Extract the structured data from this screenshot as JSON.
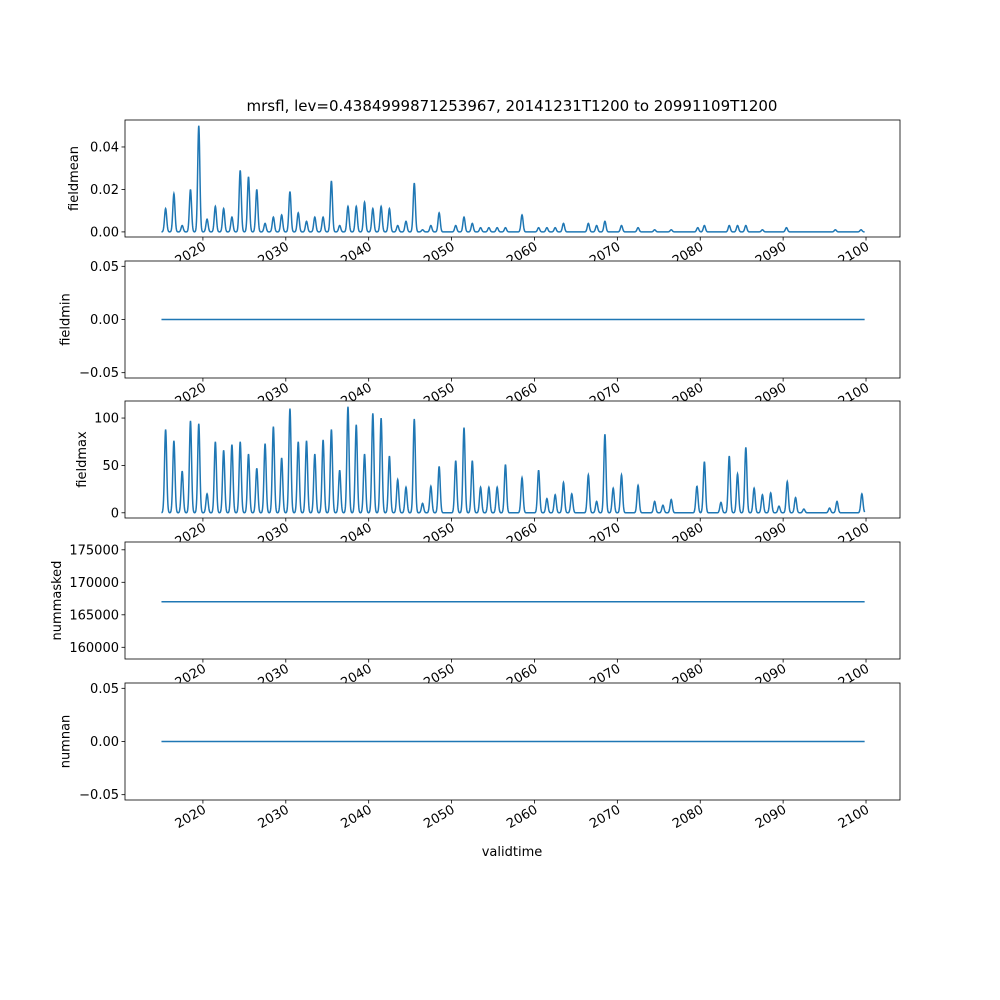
{
  "chart_data": {
    "type": "line",
    "title": "mrsfl, lev=0.4384999871253967, 20141231T1200 to 20991109T1200",
    "xlabel": "validtime",
    "xlim": [
      2010.6,
      2104.1
    ],
    "xticks": [
      "2020",
      "2030",
      "2040",
      "2050",
      "2060",
      "2070",
      "2080",
      "2090",
      "2100"
    ],
    "xtick_values": [
      2020,
      2030,
      2040,
      2050,
      2060,
      2070,
      2080,
      2090,
      2100
    ],
    "time_range": [
      2015.0,
      2099.85
    ],
    "line_color": "#1f77b4",
    "panels": [
      {
        "ylabel": "fieldmean",
        "ylim": [
          -0.0024,
          0.0527
        ],
        "yticks": [
          0.0,
          0.02,
          0.04
        ],
        "ytick_labels": [
          "0.00",
          "0.02",
          "0.04"
        ],
        "peaks": [
          [
            2015.5,
            0.011
          ],
          [
            2016.5,
            0.018
          ],
          [
            2017.5,
            0.003
          ],
          [
            2018.5,
            0.02
          ],
          [
            2019.5,
            0.05
          ],
          [
            2020.5,
            0.006
          ],
          [
            2021.5,
            0.012
          ],
          [
            2022.5,
            0.011
          ],
          [
            2023.5,
            0.007
          ],
          [
            2024.5,
            0.029
          ],
          [
            2025.5,
            0.026
          ],
          [
            2026.5,
            0.02
          ],
          [
            2027.5,
            0.004
          ],
          [
            2028.5,
            0.007
          ],
          [
            2029.5,
            0.008
          ],
          [
            2030.5,
            0.019
          ],
          [
            2031.5,
            0.009
          ],
          [
            2032.5,
            0.005
          ],
          [
            2033.5,
            0.007
          ],
          [
            2034.5,
            0.007
          ],
          [
            2035.5,
            0.024
          ],
          [
            2036.5,
            0.003
          ],
          [
            2037.5,
            0.012
          ],
          [
            2038.5,
            0.012
          ],
          [
            2039.5,
            0.014
          ],
          [
            2040.5,
            0.011
          ],
          [
            2041.5,
            0.012
          ],
          [
            2042.5,
            0.011
          ],
          [
            2043.5,
            0.003
          ],
          [
            2044.5,
            0.005
          ],
          [
            2045.5,
            0.023
          ],
          [
            2046.5,
            0.001
          ],
          [
            2047.5,
            0.003
          ],
          [
            2048.5,
            0.009
          ],
          [
            2050.5,
            0.003
          ],
          [
            2051.5,
            0.007
          ],
          [
            2052.5,
            0.004
          ],
          [
            2053.5,
            0.002
          ],
          [
            2054.5,
            0.002
          ],
          [
            2055.5,
            0.002
          ],
          [
            2056.5,
            0.002
          ],
          [
            2058.5,
            0.008
          ],
          [
            2060.5,
            0.002
          ],
          [
            2061.5,
            0.002
          ],
          [
            2062.5,
            0.002
          ],
          [
            2063.5,
            0.004
          ],
          [
            2066.5,
            0.004
          ],
          [
            2067.5,
            0.003
          ],
          [
            2068.5,
            0.005
          ],
          [
            2070.5,
            0.003
          ],
          [
            2072.5,
            0.002
          ],
          [
            2074.5,
            0.001
          ],
          [
            2076.5,
            0.001
          ],
          [
            2079.7,
            0.002
          ],
          [
            2080.5,
            0.003
          ],
          [
            2083.5,
            0.003
          ],
          [
            2084.5,
            0.003
          ],
          [
            2085.5,
            0.003
          ],
          [
            2087.5,
            0.001
          ],
          [
            2090.4,
            0.002
          ],
          [
            2096.3,
            0.001
          ],
          [
            2099.4,
            0.001
          ]
        ]
      },
      {
        "ylabel": "fieldmin",
        "ylim": [
          -0.055,
          0.055
        ],
        "yticks": [
          -0.05,
          0.0,
          0.05
        ],
        "ytick_labels": [
          "−0.05",
          "0.00",
          "0.05"
        ],
        "constant": 0.0
      },
      {
        "ylabel": "fieldmax",
        "ylim": [
          -5.5,
          118
        ],
        "yticks": [
          0,
          50,
          100
        ],
        "ytick_labels": [
          "0",
          "50",
          "100"
        ],
        "peaks": [
          [
            2015.5,
            88
          ],
          [
            2016.5,
            76
          ],
          [
            2017.5,
            44
          ],
          [
            2018.5,
            97
          ],
          [
            2019.5,
            94
          ],
          [
            2020.5,
            20
          ],
          [
            2021.5,
            75
          ],
          [
            2022.5,
            66
          ],
          [
            2023.5,
            72
          ],
          [
            2024.5,
            75
          ],
          [
            2025.5,
            62
          ],
          [
            2026.5,
            47
          ],
          [
            2027.5,
            73
          ],
          [
            2028.5,
            91
          ],
          [
            2029.5,
            58
          ],
          [
            2030.5,
            110
          ],
          [
            2031.5,
            75
          ],
          [
            2032.5,
            76
          ],
          [
            2033.5,
            62
          ],
          [
            2034.5,
            77
          ],
          [
            2035.5,
            88
          ],
          [
            2036.5,
            45
          ],
          [
            2037.5,
            112
          ],
          [
            2038.5,
            93
          ],
          [
            2039.5,
            62
          ],
          [
            2040.5,
            105
          ],
          [
            2041.5,
            100
          ],
          [
            2042.5,
            60
          ],
          [
            2043.5,
            35
          ],
          [
            2044.5,
            27
          ],
          [
            2045.5,
            99
          ],
          [
            2046.5,
            10
          ],
          [
            2047.5,
            28
          ],
          [
            2048.5,
            49
          ],
          [
            2050.5,
            55
          ],
          [
            2051.5,
            90
          ],
          [
            2052.5,
            55
          ],
          [
            2053.5,
            27
          ],
          [
            2054.5,
            27
          ],
          [
            2055.5,
            27
          ],
          [
            2056.5,
            51
          ],
          [
            2058.5,
            37
          ],
          [
            2060.5,
            45
          ],
          [
            2061.5,
            15
          ],
          [
            2062.5,
            19
          ],
          [
            2063.5,
            32
          ],
          [
            2064.5,
            20
          ],
          [
            2066.5,
            40
          ],
          [
            2067.5,
            12
          ],
          [
            2068.5,
            83
          ],
          [
            2069.5,
            26
          ],
          [
            2070.5,
            40
          ],
          [
            2072.5,
            29
          ],
          [
            2074.5,
            12
          ],
          [
            2075.5,
            8
          ],
          [
            2076.5,
            14
          ],
          [
            2079.6,
            28
          ],
          [
            2080.5,
            54
          ],
          [
            2082.5,
            11
          ],
          [
            2083.5,
            60
          ],
          [
            2084.5,
            41
          ],
          [
            2085.5,
            69
          ],
          [
            2086.5,
            26
          ],
          [
            2087.5,
            19
          ],
          [
            2088.5,
            21
          ],
          [
            2089.5,
            7
          ],
          [
            2090.5,
            33
          ],
          [
            2091.5,
            16
          ],
          [
            2092.5,
            4
          ],
          [
            2095.6,
            5
          ],
          [
            2096.5,
            12
          ],
          [
            2099.5,
            20
          ]
        ]
      },
      {
        "ylabel": "nummasked",
        "ylim": [
          158200,
          176200
        ],
        "yticks": [
          160000,
          165000,
          170000,
          175000
        ],
        "ytick_labels": [
          "160000",
          "165000",
          "170000",
          "175000"
        ],
        "constant": 167000
      },
      {
        "ylabel": "numnan",
        "ylim": [
          -0.055,
          0.055
        ],
        "yticks": [
          -0.05,
          0.0,
          0.05
        ],
        "ytick_labels": [
          "−0.05",
          "0.00",
          "0.05"
        ],
        "constant": 0.0
      }
    ]
  }
}
